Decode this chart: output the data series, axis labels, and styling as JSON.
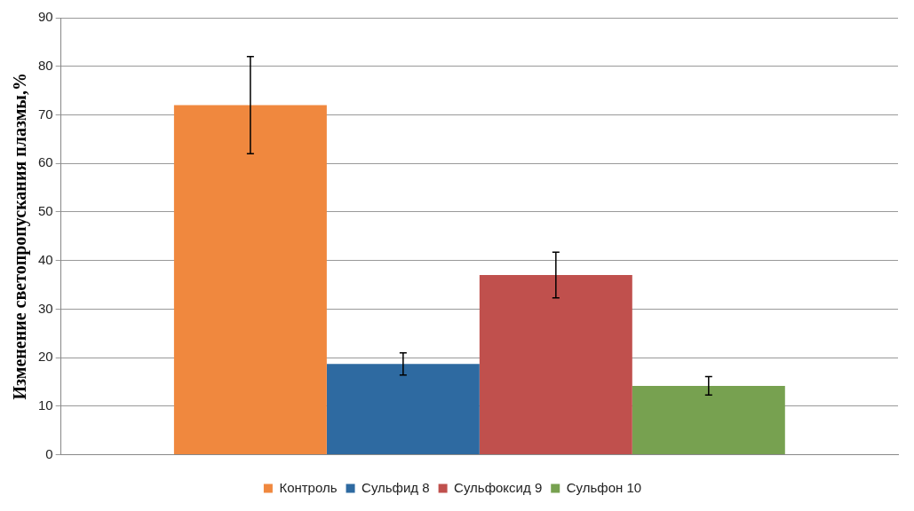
{
  "chart_data": {
    "type": "bar",
    "ylabel": "Изменение светопропускания плазмы,%",
    "categories": [
      null
    ],
    "series": [
      {
        "name": "Контроль",
        "color": "#f0883e",
        "values": [
          72
        ],
        "errors": [
          10
        ]
      },
      {
        "name": "Сульфид 8",
        "color": "#2e6aa1",
        "values": [
          18.7
        ],
        "errors": [
          2.3
        ]
      },
      {
        "name": "Сульфоксид 9",
        "color": "#c0504d",
        "values": [
          37
        ],
        "errors": [
          4.7
        ]
      },
      {
        "name": "Сульфон 10",
        "color": "#77a150",
        "values": [
          14.2
        ],
        "errors": [
          1.9
        ]
      }
    ],
    "ylim": [
      0,
      90
    ],
    "yticks": [
      0,
      10,
      20,
      30,
      40,
      50,
      60,
      70,
      80,
      90
    ],
    "grid": "y",
    "legend": "bottom"
  }
}
